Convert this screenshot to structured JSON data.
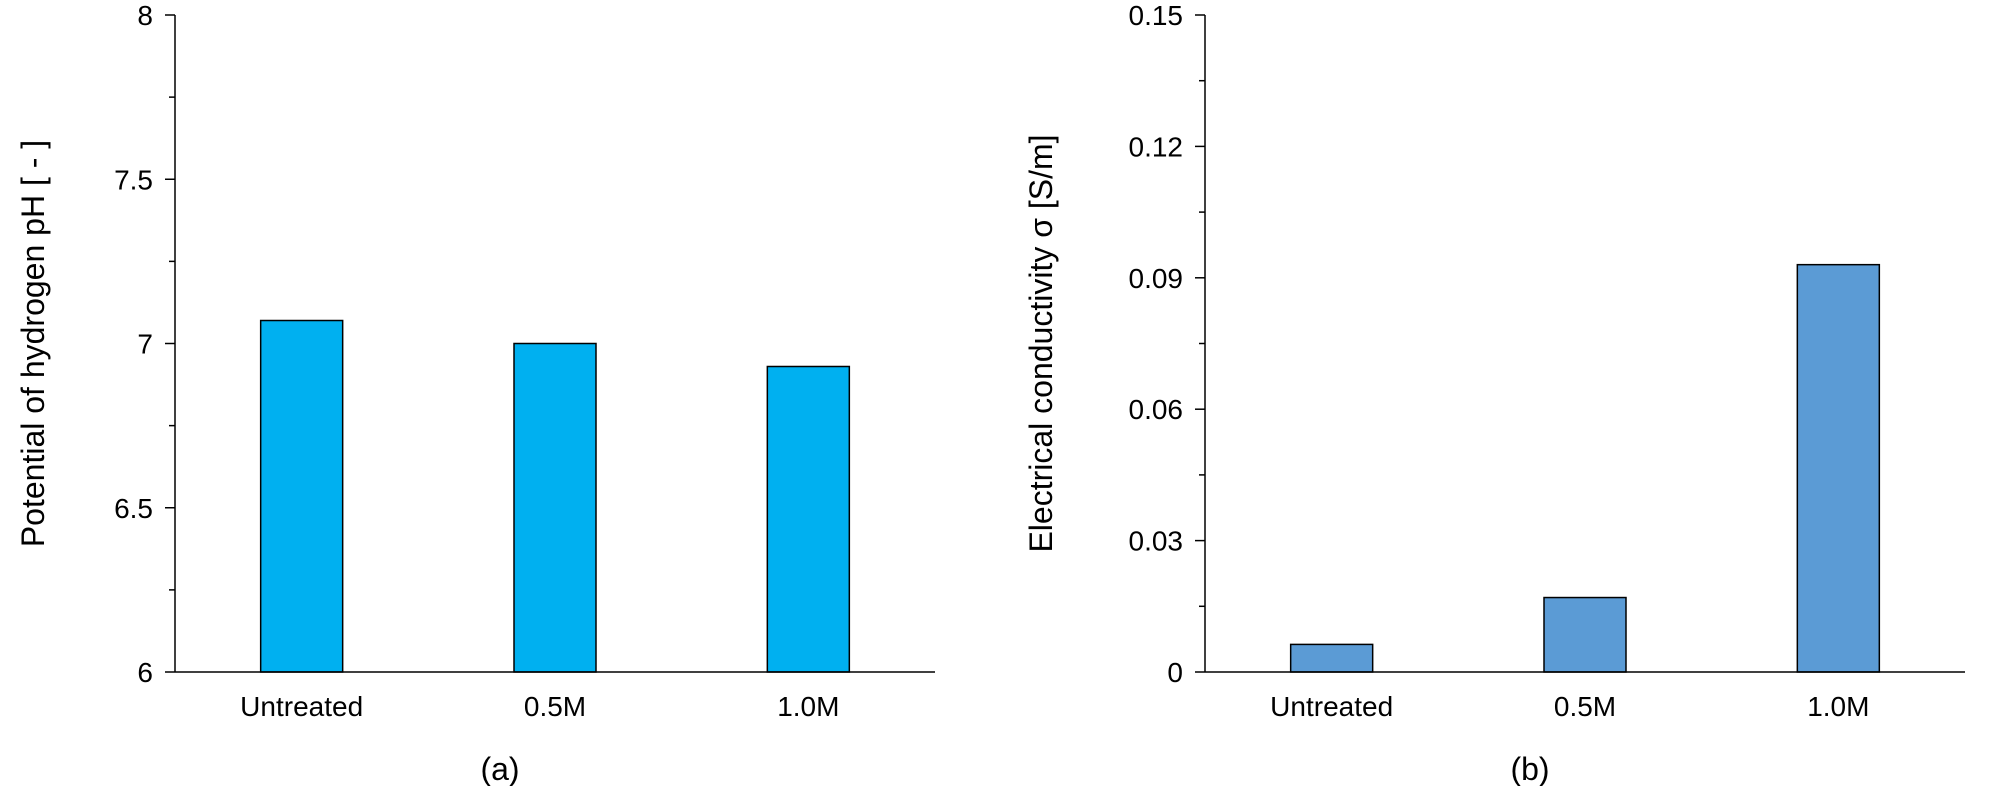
{
  "chart_data": [
    {
      "type": "bar",
      "panel_label": "(a)",
      "categories": [
        "Untreated",
        "0.5M",
        "1.0M"
      ],
      "values": [
        7.07,
        7.0,
        6.93
      ],
      "ylabel": "Potential of hydrogen pH [ - ]",
      "xlabel": "",
      "ylim": [
        6,
        8
      ],
      "yticks": [
        6,
        6.5,
        7,
        7.5,
        8
      ],
      "ytick_labels": [
        "6",
        "6.5",
        "7",
        "7.5",
        "8"
      ],
      "bar_color": "#00B0F0",
      "grid": false
    },
    {
      "type": "bar",
      "panel_label": "(b)",
      "categories": [
        "Untreated",
        "0.5M",
        "1.0M"
      ],
      "values": [
        0.0063,
        0.017,
        0.093
      ],
      "ylabel": "Electrical conductivity σ [S/m]",
      "xlabel": "",
      "ylim": [
        0,
        0.15
      ],
      "yticks": [
        0,
        0.03,
        0.06,
        0.09,
        0.12,
        0.15
      ],
      "ytick_labels": [
        "0",
        "0.03",
        "0.06",
        "0.09",
        "0.12",
        "0.15"
      ],
      "bar_color": "#5B9BD5",
      "grid": false
    }
  ]
}
